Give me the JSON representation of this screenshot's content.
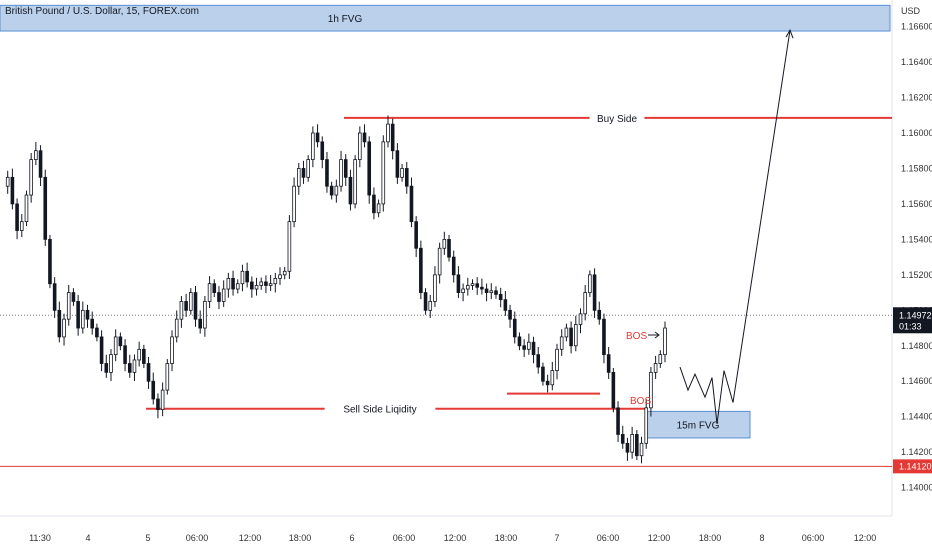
{
  "header": {
    "symbol_title": "British Pound / U.S. Dollar, 15, FOREX.com"
  },
  "price_axis": {
    "currency": "USD"
  },
  "colors": {
    "up": "#26a69a",
    "down": "#131722",
    "candle": "#131722",
    "level_line": "#e53935",
    "fvg_fill": "#bbd0ea",
    "fvg_border": "#5b8fd4",
    "current_price_bg": "#131722",
    "low_price_bg": "#e53935"
  },
  "chart_data": {
    "type": "candlestick",
    "title": "British Pound / U.S. Dollar, 15, FOREX.com",
    "xlabel": "",
    "ylabel": "",
    "ylim": [
      1.1384,
      1.1675
    ],
    "y_ticks": [
      "1.16600",
      "1.16400",
      "1.16200",
      "1.16000",
      "1.15800",
      "1.15600",
      "1.15400",
      "1.15200",
      "1.15000",
      "1.14800",
      "1.14600",
      "1.14400",
      "1.14200",
      "1.14000"
    ],
    "x_ticks": [
      "11:30",
      "4",
      "5",
      "06:00",
      "12:00",
      "18:00",
      "6",
      "06:00",
      "12:00",
      "18:00",
      "7",
      "06:00",
      "12:00",
      "18:00",
      "8",
      "06:00",
      "12:00"
    ],
    "grid": false,
    "price_path": [
      1.157,
      1.1575,
      1.156,
      1.1545,
      1.155,
      1.1565,
      1.1585,
      1.159,
      1.1575,
      1.154,
      1.1515,
      1.15,
      1.1485,
      1.1495,
      1.151,
      1.1505,
      1.149,
      1.15,
      1.1495,
      1.149,
      1.1485,
      1.147,
      1.1465,
      1.1475,
      1.1485,
      1.148,
      1.147,
      1.1465,
      1.1472,
      1.1478,
      1.147,
      1.146,
      1.145,
      1.1444,
      1.1455,
      1.147,
      1.1485,
      1.1495,
      1.1505,
      1.15,
      1.151,
      1.1495,
      1.149,
      1.1505,
      1.1515,
      1.151,
      1.1505,
      1.1512,
      1.1518,
      1.1512,
      1.1515,
      1.1522,
      1.1516,
      1.1512,
      1.1514,
      1.1516,
      1.1514,
      1.1515,
      1.1518,
      1.152,
      1.1522,
      1.155,
      1.157,
      1.158,
      1.1575,
      1.1585,
      1.16,
      1.1595,
      1.1585,
      1.157,
      1.1565,
      1.157,
      1.1585,
      1.1575,
      1.156,
      1.1585,
      1.16,
      1.1595,
      1.1565,
      1.1555,
      1.156,
      1.1595,
      1.1605,
      1.159,
      1.1575,
      1.158,
      1.157,
      1.155,
      1.1535,
      1.151,
      1.15,
      1.1505,
      1.152,
      1.1535,
      1.154,
      1.153,
      1.152,
      1.151,
      1.1512,
      1.1514,
      1.1515,
      1.1513,
      1.1512,
      1.151,
      1.1511,
      1.1509,
      1.1506,
      1.15,
      1.1495,
      1.1485,
      1.148,
      1.1478,
      1.1482,
      1.1475,
      1.1468,
      1.146,
      1.1458,
      1.1466,
      1.1478,
      1.1485,
      1.149,
      1.148,
      1.1492,
      1.1498,
      1.151,
      1.152,
      1.15,
      1.1495,
      1.1475,
      1.1465,
      1.1445,
      1.143,
      1.1425,
      1.142,
      1.143,
      1.1418,
      1.1425,
      1.1445,
      1.1465,
      1.147,
      1.1475,
      1.149
    ],
    "projection_path": [
      [
        1.1468,
        0
      ],
      [
        1.1455,
        1
      ],
      [
        1.1464,
        2
      ],
      [
        1.1451,
        3
      ],
      [
        1.1462,
        4
      ],
      [
        1.1436,
        5
      ],
      [
        1.1466,
        6
      ],
      [
        1.1448,
        7
      ],
      [
        1.1658,
        8
      ]
    ],
    "levels": [
      {
        "label": "Buy Side",
        "price": 1.16085,
        "color": "#e53935"
      },
      {
        "label": "Sell Side Liqidity",
        "price": 1.14445,
        "color": "#e53935"
      },
      {
        "label": "",
        "price": 1.1453,
        "color": "#e53935"
      },
      {
        "label": "",
        "price": 1.1412,
        "color": "#e53935"
      }
    ],
    "zones": [
      {
        "label": "1h FVG",
        "top": 1.1672,
        "bottom": 1.16575
      },
      {
        "label": "15m FVG",
        "top": 1.1443,
        "bottom": 1.1428
      }
    ],
    "annotations": [
      {
        "text": "BOS"
      },
      {
        "text": "BOS"
      }
    ],
    "current_price": {
      "value": "1.14972",
      "countdown": "01:33"
    },
    "low_price_label": "1.14120"
  }
}
